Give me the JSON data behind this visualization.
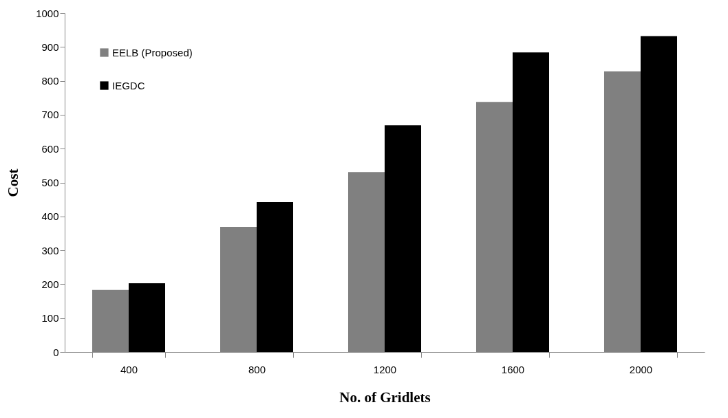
{
  "chart_data": {
    "type": "bar",
    "xlabel": "No. of Gridlets",
    "ylabel": "Cost",
    "categories": [
      "400",
      "800",
      "1200",
      "1600",
      "2000"
    ],
    "series": [
      {
        "name": "EELB (Proposed)",
        "color": "#808080",
        "values": [
          183,
          369,
          531,
          738,
          828
        ]
      },
      {
        "name": "IEGDC",
        "color": "#000000",
        "values": [
          203,
          442,
          669,
          884,
          932
        ]
      }
    ],
    "ylim": [
      0,
      1000
    ],
    "yticks": [
      0,
      100,
      200,
      300,
      400,
      500,
      600,
      700,
      800,
      900,
      1000
    ],
    "grid": false,
    "legend": "top left"
  }
}
